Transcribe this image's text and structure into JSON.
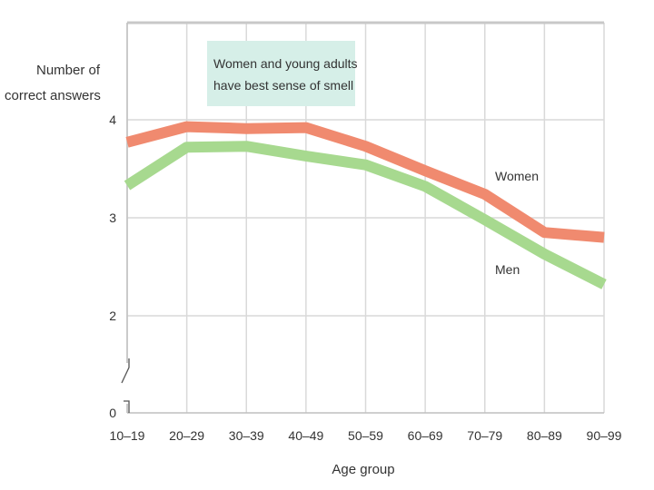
{
  "chart_data": {
    "type": "line",
    "title": "",
    "xlabel": "Age group",
    "ylabel_lines": [
      "Number of",
      "correct answers"
    ],
    "categories": [
      "10–19",
      "20–29",
      "30–39",
      "40–49",
      "50–59",
      "60–69",
      "70–79",
      "80–89",
      "90–99"
    ],
    "ylim": [
      0,
      5
    ],
    "yticks": [
      0,
      2,
      3,
      4
    ],
    "axis_break": true,
    "grid": true,
    "annotation": [
      "Women and young adults",
      "have best sense of smell"
    ],
    "series": [
      {
        "name": "Women",
        "color": "#f08a6f",
        "values": [
          3.77,
          3.93,
          3.91,
          3.92,
          3.73,
          3.48,
          3.24,
          2.85,
          2.8
        ]
      },
      {
        "name": "Men",
        "color": "#a7d98f",
        "values": [
          3.33,
          3.72,
          3.73,
          3.63,
          3.54,
          3.32,
          2.98,
          2.63,
          2.32
        ]
      }
    ]
  }
}
